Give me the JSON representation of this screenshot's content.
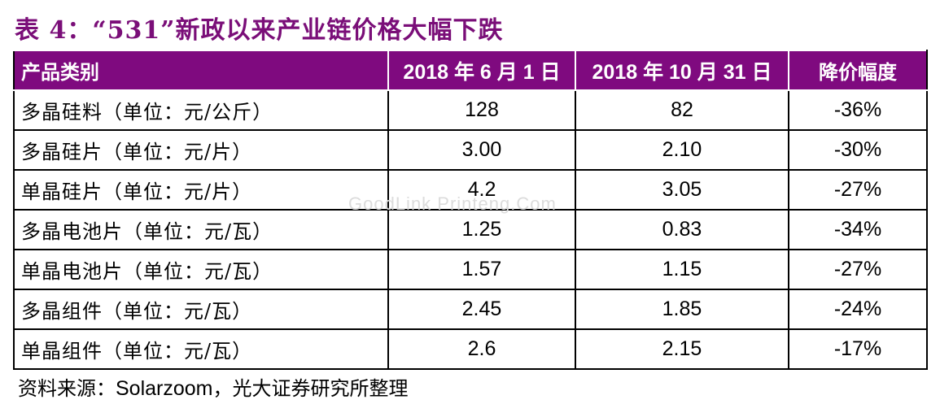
{
  "title": "表 4：“531”新政以来产业链价格大幅下跌",
  "table": {
    "headers": [
      "产品类别",
      "2018 年 6 月 1 日",
      "2018 年 10 月 31 日",
      "降价幅度"
    ],
    "rows": [
      [
        "多晶硅料（单位：元/公斤）",
        "128",
        "82",
        "-36%"
      ],
      [
        "多晶硅片（单位：元/片）",
        "3.00",
        "2.10",
        "-30%"
      ],
      [
        "单晶硅片（单位：元/片）",
        "4.2",
        "3.05",
        "-27%"
      ],
      [
        "多晶电池片（单位：元/瓦）",
        "1.25",
        "0.83",
        "-34%"
      ],
      [
        "单晶电池片（单位：元/瓦）",
        "1.57",
        "1.15",
        "-27%"
      ],
      [
        "多晶组件（单位：元/瓦）",
        "2.45",
        "1.85",
        "-24%"
      ],
      [
        "单晶组件（单位：元/瓦）",
        "2.6",
        "2.15",
        "-17%"
      ]
    ]
  },
  "watermark": "GoodLink Printeng.Com",
  "source": {
    "prefix": "资料来源：",
    "name": "Solarzoom",
    "suffix": "，光大证券研究所整理"
  },
  "colors": {
    "title": "#7a0e78",
    "header_bg": "#7f0a7f",
    "header_text": "#ffffff"
  }
}
